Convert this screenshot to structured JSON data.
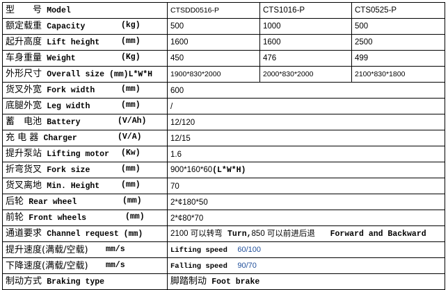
{
  "rows": [
    {
      "cn": "型　　号",
      "en": "Model",
      "unit": "",
      "values": [
        "CTSDD0516-P",
        "CTS1016-P",
        "CTS0525-P"
      ]
    },
    {
      "cn": "额定载重",
      "en": "Capacity",
      "unit": "(kg)",
      "values": [
        "500",
        "1000",
        "500"
      ]
    },
    {
      "cn": "起升高度",
      "en": "Lift height",
      "unit": "(mm)",
      "values": [
        "1600",
        "1600",
        "2500"
      ]
    },
    {
      "cn": "车身重量",
      "en": "Weight",
      "unit": "(Kg)",
      "values": [
        "450",
        "476",
        "499"
      ]
    },
    {
      "cn": "外形尺寸",
      "en": "Overall size (mm)L*W*H",
      "unit": "",
      "values": [
        "1900*830*2000",
        "2000*830*2000",
        "2100*830*1800"
      ]
    },
    {
      "cn": "货叉外宽",
      "en": "Fork width",
      "unit": "(mm)",
      "value": "600"
    },
    {
      "cn": "底腿外宽",
      "en": "Leg width",
      "unit": "(mm)",
      "value": "/"
    },
    {
      "cn": "蓄　电池",
      "en": "Battery",
      "unit": "(V/Ah)",
      "value": "12/120"
    },
    {
      "cn": "充 电 器",
      "en": "Charger",
      "unit": "(V/A)",
      "value": "12/15"
    },
    {
      "cn": "提升泵站",
      "en": "Lifting motor",
      "unit": "(Kw)",
      "value": "1.6"
    },
    {
      "cn": "折弯货叉",
      "en": "Fork size",
      "unit": "(mm)",
      "value": "900*160*60",
      "value_suffix": "(L*W*H)"
    },
    {
      "cn": "货叉离地",
      "en": "Min. Height",
      "unit": "(mm)",
      "value": "70"
    },
    {
      "cn": "后轮",
      "en": "Rear wheel",
      "unit": "(mm)",
      "value": "2*¢180*50"
    },
    {
      "cn": "前轮",
      "en": "Front wheels",
      "unit": "(mm)",
      "value": "2*¢80*70"
    },
    {
      "cn": "通道要求",
      "en": "Channel request (mm)",
      "unit": "",
      "value": "2100 可以转弯",
      "value_b1": "Turn,",
      "value_2": "850 可以前进后退",
      "value_b2": "Forward and Backward"
    },
    {
      "cn": "提升速度(满载/空载)",
      "en": "",
      "unit": "mm/s",
      "label": "Lifting speed",
      "value": "60/100"
    },
    {
      "cn": "下降速度(满载/空载)",
      "en": "",
      "unit": "mm/s",
      "label": "Falling speed",
      "value": "90/70"
    },
    {
      "cn": "制动方式",
      "en": "Braking type",
      "unit": "",
      "value_cn": "脚踏制动",
      "value_en": "Foot brake"
    }
  ]
}
